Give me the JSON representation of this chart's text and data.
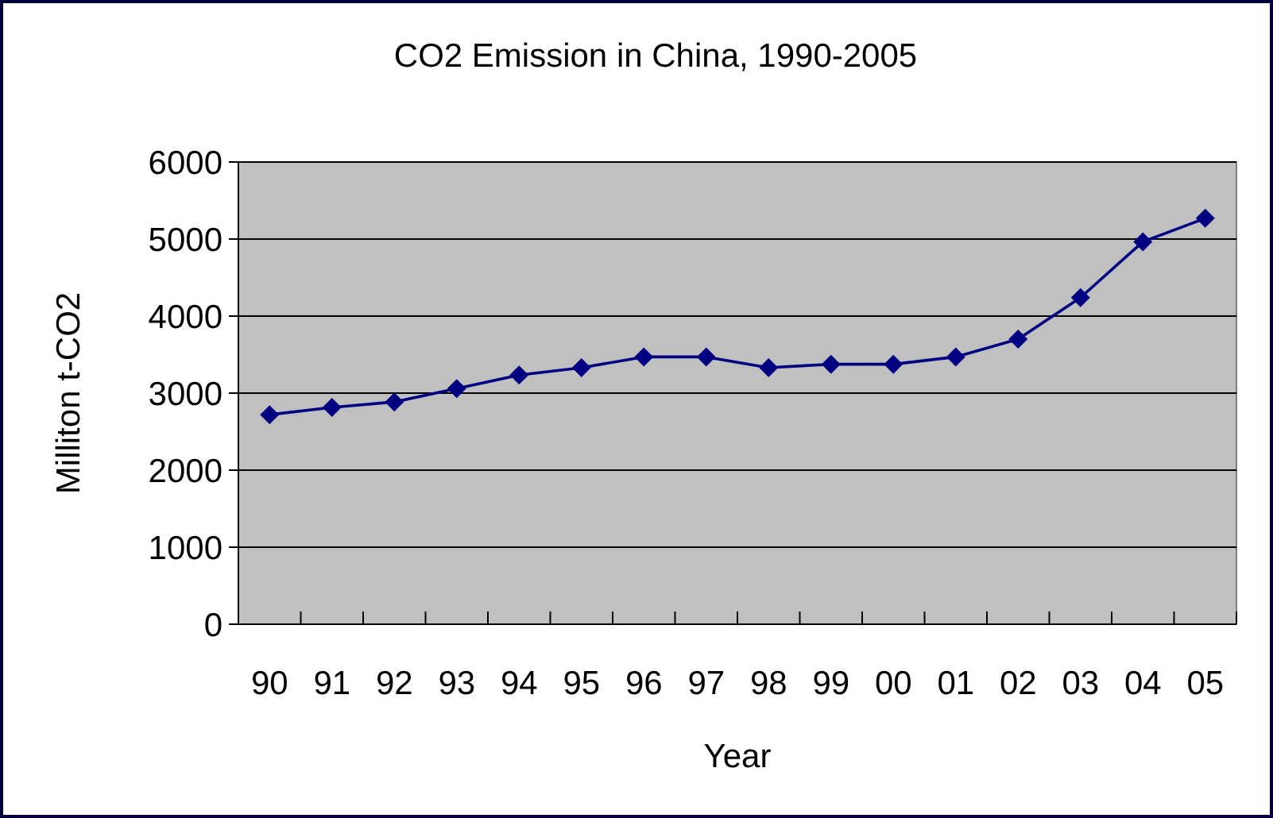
{
  "chart_data": {
    "type": "line",
    "title": "CO2 Emission in China, 1990-2005",
    "xlabel": "Year",
    "ylabel": "Milliton t-CO2",
    "categories": [
      "90",
      "91",
      "92",
      "93",
      "94",
      "95",
      "96",
      "97",
      "98",
      "99",
      "00",
      "01",
      "02",
      "03",
      "04",
      "05"
    ],
    "series": [
      {
        "color": "#000080",
        "values": [
          2720,
          2815,
          2885,
          3060,
          3235,
          3330,
          3470,
          3470,
          3330,
          3375,
          3375,
          3470,
          3700,
          4240,
          4965,
          5270
        ]
      }
    ],
    "ylim": [
      0,
      6000
    ],
    "yticks": [
      0,
      1000,
      2000,
      3000,
      4000,
      5000,
      6000
    ],
    "grid": "y",
    "marker": "diamond",
    "line_style": "solid"
  }
}
